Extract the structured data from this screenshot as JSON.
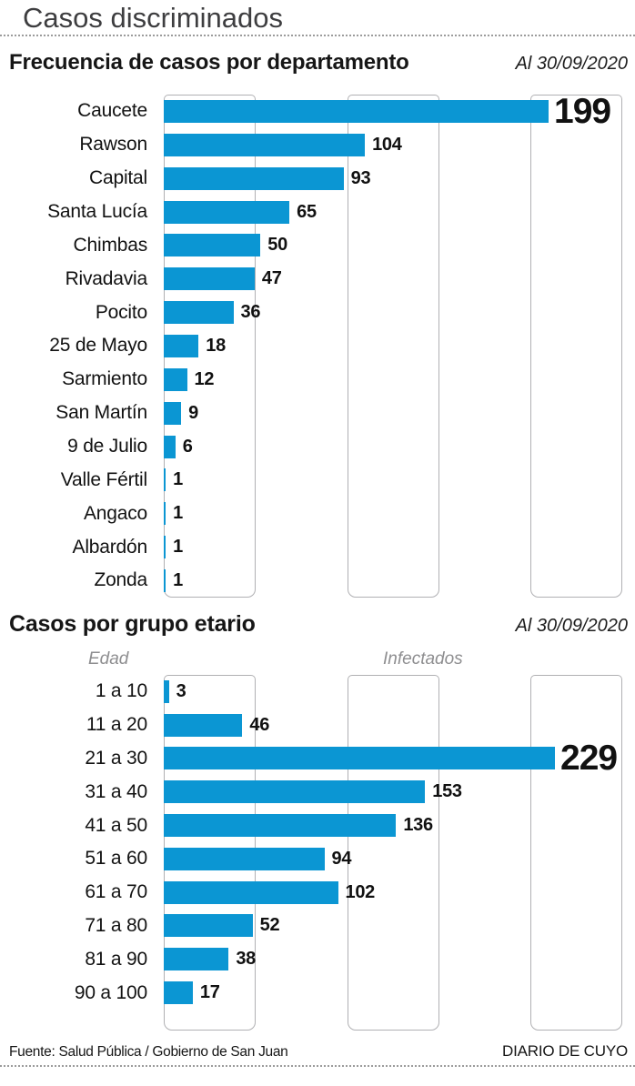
{
  "page": {
    "title": "Casos discriminados",
    "source": "Fuente: Salud Pública / Gobierno de San Juan",
    "brand": "DIARIO DE CUYO"
  },
  "colors": {
    "bar": "#0b96d3",
    "band_border": "#b0b0b3",
    "muted_text": "#8e8e90",
    "header_gray": "#3e3e40"
  },
  "chart_data": [
    {
      "type": "bar",
      "orientation": "horizontal",
      "title": "Frecuencia de casos por departamento",
      "date_label": "Al 30/09/2020",
      "categories": [
        "Caucete",
        "Rawson",
        "Capital",
        "Santa Lucía",
        "Chimbas",
        "Rivadavia",
        "Pocito",
        "25 de Mayo",
        "Sarmiento",
        "San Martín",
        "9 de Julio",
        "Valle Fértil",
        "Angaco",
        "Albardón",
        "Zonda"
      ],
      "values": [
        199,
        104,
        93,
        65,
        50,
        47,
        36,
        18,
        12,
        9,
        6,
        1,
        1,
        1,
        1
      ],
      "value_labels": "bold at end of each bar, max value (199) emphasized extra large",
      "xlim": [
        0,
        237
      ],
      "grid": "three unlabeled vertical band columns with rounded corners",
      "legend": "none"
    },
    {
      "type": "bar",
      "orientation": "horizontal",
      "title": "Casos por grupo etario",
      "date_label": "Al 30/09/2020",
      "col_left": "Edad",
      "col_right": "Infectados",
      "categories": [
        "1 a 10",
        "11 a 20",
        "21 a 30",
        "31 a 40",
        "41 a 50",
        "51 a 60",
        "61 a 70",
        "71 a 80",
        "81 a 90",
        "90 a 100"
      ],
      "values": [
        3,
        46,
        229,
        153,
        136,
        94,
        102,
        52,
        38,
        17
      ],
      "value_labels": "bold at end of each bar, max value (229) emphasized extra large",
      "xlim": [
        0,
        268
      ],
      "grid": "three unlabeled vertical band columns with rounded corners",
      "legend": "none"
    }
  ]
}
